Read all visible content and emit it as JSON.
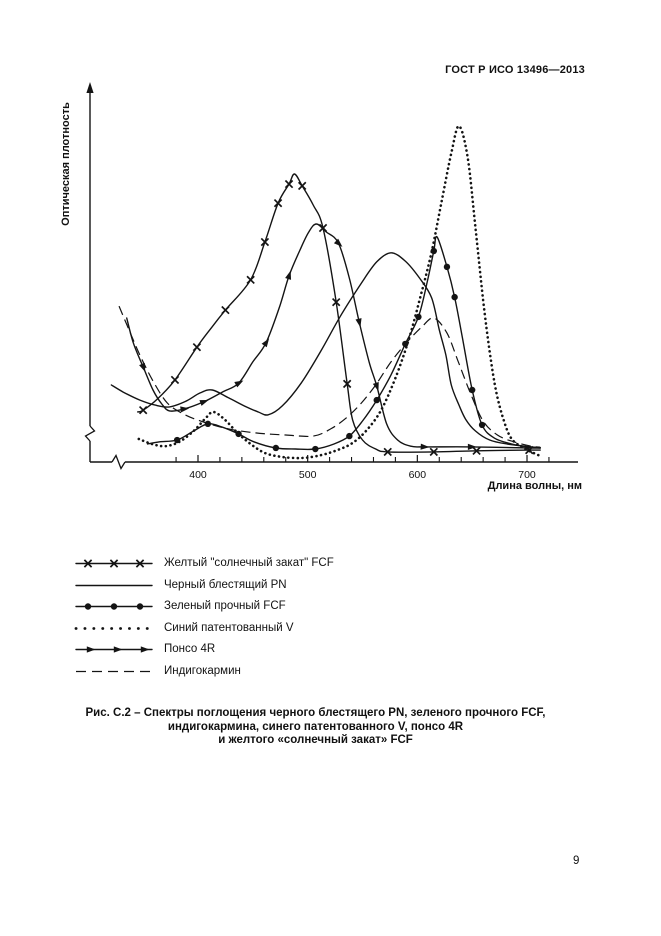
{
  "header": {
    "title": "ГОСТ Р ИСО 13496—2013"
  },
  "page": {
    "number": "9"
  },
  "caption": {
    "line1": "Рис. С.2 – Спектры поглощения черного блестящего PN, зеленого прочного FCF,",
    "line2": "индигокармина, синего патентованного V, понсо 4R",
    "line3": "и желтого «солнечный закат» FCF"
  },
  "colors": {
    "ink": "#141414",
    "paper": "#ffffff"
  },
  "chart_data": {
    "type": "line",
    "title": "",
    "xlabel": "Длина волны, нм",
    "ylabel": "Оптическая плотность",
    "xlim": [
      325,
      715
    ],
    "ylim": [
      0,
      1.05
    ],
    "x_ticks": [
      400,
      500,
      600,
      700
    ],
    "x_minor_step": 20,
    "grid": false,
    "y_axis_numeric": false,
    "axis_breaks": {
      "x": true,
      "y": true
    },
    "legend_position": "below-chart",
    "series": [
      {
        "id": "sunset-yellow-fcf",
        "name": "Желтый \"солнечный закат\" FCF",
        "line": "solid",
        "marker": "x",
        "points": [
          [
            345,
            0.139
          ],
          [
            350,
            0.144
          ],
          [
            363,
            0.175
          ],
          [
            379,
            0.228
          ],
          [
            399,
            0.319
          ],
          [
            412,
            0.372
          ],
          [
            425,
            0.422
          ],
          [
            448,
            0.506
          ],
          [
            461,
            0.611
          ],
          [
            473,
            0.719
          ],
          [
            483,
            0.772
          ],
          [
            488,
            0.8
          ],
          [
            495,
            0.767
          ],
          [
            505,
            0.714
          ],
          [
            514,
            0.65
          ],
          [
            526,
            0.444
          ],
          [
            536,
            0.217
          ],
          [
            541,
            0.117
          ],
          [
            550,
            0.061
          ],
          [
            562,
            0.036
          ],
          [
            573,
            0.028
          ],
          [
            615,
            0.028
          ],
          [
            654,
            0.031
          ],
          [
            702,
            0.033
          ],
          [
            712,
            0.033
          ]
        ],
        "marker_points": [
          [
            350,
            0.144
          ],
          [
            379,
            0.228
          ],
          [
            399,
            0.319
          ],
          [
            425,
            0.422
          ],
          [
            448,
            0.506
          ],
          [
            461,
            0.611
          ],
          [
            473,
            0.719
          ],
          [
            483,
            0.772
          ],
          [
            495,
            0.767
          ],
          [
            514,
            0.65
          ],
          [
            526,
            0.444
          ],
          [
            536,
            0.217
          ],
          [
            573,
            0.028
          ],
          [
            615,
            0.028
          ],
          [
            654,
            0.031
          ],
          [
            702,
            0.033
          ]
        ]
      },
      {
        "id": "brilliant-black-pn",
        "name": "Черный блестящий PN",
        "line": "solid",
        "marker": "none",
        "points": [
          [
            321,
            0.214
          ],
          [
            332,
            0.194
          ],
          [
            347,
            0.172
          ],
          [
            361,
            0.158
          ],
          [
            374,
            0.153
          ],
          [
            389,
            0.169
          ],
          [
            402,
            0.192
          ],
          [
            413,
            0.2
          ],
          [
            428,
            0.178
          ],
          [
            444,
            0.153
          ],
          [
            455,
            0.139
          ],
          [
            464,
            0.131
          ],
          [
            477,
            0.156
          ],
          [
            494,
            0.219
          ],
          [
            512,
            0.308
          ],
          [
            530,
            0.406
          ],
          [
            549,
            0.497
          ],
          [
            563,
            0.556
          ],
          [
            576,
            0.581
          ],
          [
            589,
            0.558
          ],
          [
            602,
            0.511
          ],
          [
            613,
            0.456
          ],
          [
            620,
            0.367
          ],
          [
            626,
            0.297
          ],
          [
            631,
            0.214
          ],
          [
            638,
            0.158
          ],
          [
            644,
            0.119
          ],
          [
            653,
            0.086
          ],
          [
            666,
            0.061
          ],
          [
            682,
            0.05
          ],
          [
            704,
            0.042
          ],
          [
            712,
            0.04
          ]
        ],
        "marker_points": []
      },
      {
        "id": "fast-green-fcf",
        "name": "Зеленый прочный FCF",
        "line": "solid",
        "marker": "circle",
        "points": [
          [
            354,
            0.05
          ],
          [
            365,
            0.056
          ],
          [
            381,
            0.061
          ],
          [
            396,
            0.086
          ],
          [
            409,
            0.106
          ],
          [
            422,
            0.097
          ],
          [
            437,
            0.078
          ],
          [
            451,
            0.056
          ],
          [
            471,
            0.039
          ],
          [
            489,
            0.036
          ],
          [
            507,
            0.036
          ],
          [
            524,
            0.05
          ],
          [
            538,
            0.072
          ],
          [
            550,
            0.114
          ],
          [
            563,
            0.172
          ],
          [
            576,
            0.242
          ],
          [
            589,
            0.328
          ],
          [
            601,
            0.403
          ],
          [
            609,
            0.5
          ],
          [
            615,
            0.586
          ],
          [
            618,
            0.625
          ],
          [
            627,
            0.542
          ],
          [
            634,
            0.458
          ],
          [
            641,
            0.347
          ],
          [
            650,
            0.2
          ],
          [
            659,
            0.103
          ],
          [
            670,
            0.067
          ],
          [
            686,
            0.05
          ],
          [
            700,
            0.042
          ],
          [
            712,
            0.039
          ]
        ],
        "marker_points": [
          [
            381,
            0.061
          ],
          [
            409,
            0.106
          ],
          [
            437,
            0.078
          ],
          [
            471,
            0.039
          ],
          [
            507,
            0.036
          ],
          [
            538,
            0.072
          ],
          [
            563,
            0.172
          ],
          [
            589,
            0.328
          ],
          [
            601,
            0.403
          ],
          [
            615,
            0.586
          ],
          [
            627,
            0.542
          ],
          [
            634,
            0.458
          ],
          [
            650,
            0.2
          ],
          [
            659,
            0.103
          ]
        ]
      },
      {
        "id": "patent-blue-v",
        "name": "Синий патентованный V",
        "line": "dotted",
        "marker": "none",
        "points": [
          [
            346,
            0.064
          ],
          [
            358,
            0.05
          ],
          [
            370,
            0.044
          ],
          [
            383,
            0.056
          ],
          [
            396,
            0.086
          ],
          [
            407,
            0.122
          ],
          [
            414,
            0.139
          ],
          [
            424,
            0.119
          ],
          [
            436,
            0.081
          ],
          [
            448,
            0.05
          ],
          [
            461,
            0.025
          ],
          [
            477,
            0.014
          ],
          [
            495,
            0.011
          ],
          [
            512,
            0.019
          ],
          [
            527,
            0.033
          ],
          [
            541,
            0.053
          ],
          [
            554,
            0.089
          ],
          [
            567,
            0.144
          ],
          [
            580,
            0.233
          ],
          [
            592,
            0.339
          ],
          [
            603,
            0.461
          ],
          [
            613,
            0.583
          ],
          [
            622,
            0.722
          ],
          [
            631,
            0.858
          ],
          [
            638,
            0.933
          ],
          [
            646,
            0.844
          ],
          [
            653,
            0.65
          ],
          [
            660,
            0.45
          ],
          [
            666,
            0.306
          ],
          [
            672,
            0.194
          ],
          [
            679,
            0.114
          ],
          [
            686,
            0.064
          ],
          [
            697,
            0.039
          ],
          [
            706,
            0.025
          ],
          [
            712,
            0.017
          ]
        ],
        "marker_points": []
      },
      {
        "id": "ponceau-4r",
        "name": "Понсо 4R",
        "line": "solid",
        "marker": "arrow",
        "points": [
          [
            335,
            0.4
          ],
          [
            341,
            0.331
          ],
          [
            350,
            0.264
          ],
          [
            359,
            0.2
          ],
          [
            367,
            0.161
          ],
          [
            374,
            0.142
          ],
          [
            387,
            0.147
          ],
          [
            405,
            0.167
          ],
          [
            422,
            0.194
          ],
          [
            437,
            0.219
          ],
          [
            450,
            0.278
          ],
          [
            462,
            0.331
          ],
          [
            474,
            0.428
          ],
          [
            483,
            0.517
          ],
          [
            493,
            0.589
          ],
          [
            501,
            0.639
          ],
          [
            508,
            0.661
          ],
          [
            517,
            0.639
          ],
          [
            528,
            0.608
          ],
          [
            538,
            0.511
          ],
          [
            547,
            0.389
          ],
          [
            556,
            0.278
          ],
          [
            563,
            0.211
          ],
          [
            572,
            0.106
          ],
          [
            582,
            0.061
          ],
          [
            594,
            0.044
          ],
          [
            606,
            0.042
          ],
          [
            649,
            0.042
          ],
          [
            704,
            0.039
          ],
          [
            712,
            0.039
          ]
        ],
        "marker_points": [
          [
            350,
            0.264
          ],
          [
            387,
            0.147
          ],
          [
            405,
            0.167
          ],
          [
            437,
            0.219
          ],
          [
            462,
            0.331
          ],
          [
            483,
            0.517
          ],
          [
            528,
            0.608
          ],
          [
            547,
            0.389
          ],
          [
            563,
            0.211
          ],
          [
            606,
            0.042
          ],
          [
            649,
            0.042
          ]
        ]
      },
      {
        "id": "indigo-carmine",
        "name": "Индигокармин",
        "line": "dashed",
        "marker": "none",
        "points": [
          [
            328,
            0.433
          ],
          [
            336,
            0.375
          ],
          [
            347,
            0.297
          ],
          [
            359,
            0.225
          ],
          [
            372,
            0.164
          ],
          [
            387,
            0.133
          ],
          [
            405,
            0.111
          ],
          [
            428,
            0.092
          ],
          [
            452,
            0.081
          ],
          [
            480,
            0.075
          ],
          [
            505,
            0.072
          ],
          [
            521,
            0.092
          ],
          [
            535,
            0.122
          ],
          [
            549,
            0.164
          ],
          [
            562,
            0.214
          ],
          [
            576,
            0.278
          ],
          [
            590,
            0.331
          ],
          [
            604,
            0.375
          ],
          [
            615,
            0.4
          ],
          [
            627,
            0.358
          ],
          [
            637,
            0.281
          ],
          [
            648,
            0.194
          ],
          [
            660,
            0.114
          ],
          [
            673,
            0.075
          ],
          [
            688,
            0.056
          ],
          [
            704,
            0.044
          ],
          [
            712,
            0.041
          ]
        ],
        "marker_points": []
      }
    ]
  },
  "legend": {
    "items": [
      {
        "series": "sunset-yellow-fcf",
        "label": "Желтый \"солнечный закат\" FCF"
      },
      {
        "series": "brilliant-black-pn",
        "label": "Черный блестящий PN"
      },
      {
        "series": "fast-green-fcf",
        "label": "Зеленый прочный FCF"
      },
      {
        "series": "patent-blue-v",
        "label": "Синий патентованный V"
      },
      {
        "series": "ponceau-4r",
        "label": "Понсо 4R"
      },
      {
        "series": "indigo-carmine",
        "label": "Индигокармин"
      }
    ]
  }
}
